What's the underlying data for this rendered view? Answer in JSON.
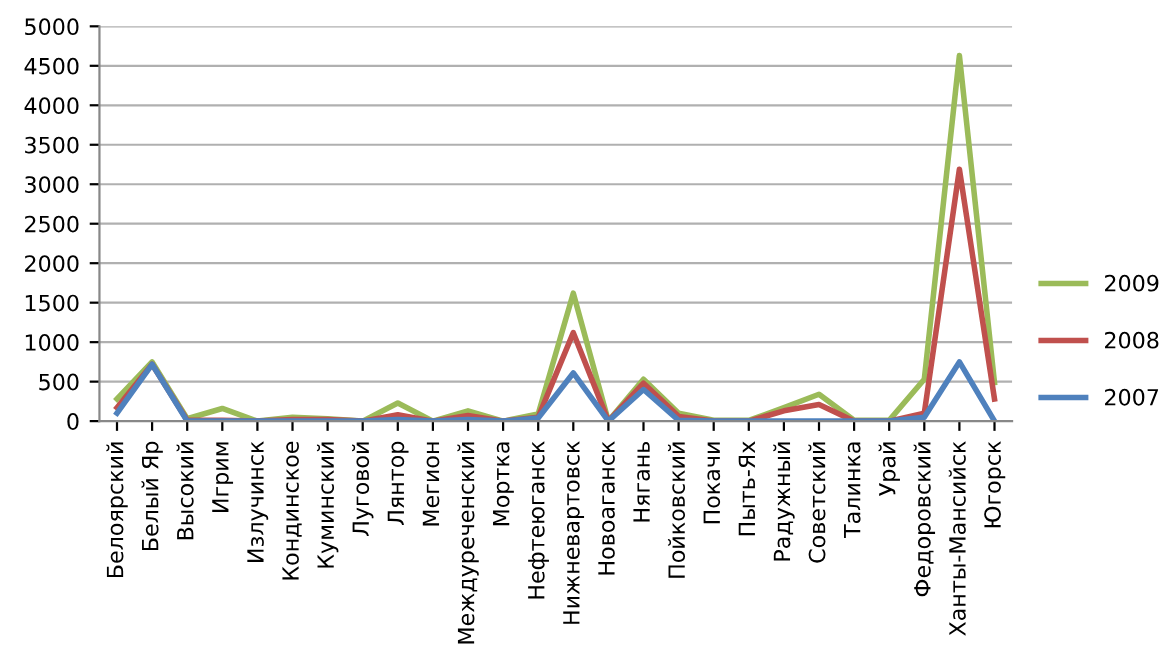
{
  "chart_data": {
    "type": "line",
    "categories": [
      "Белоярский",
      "Белый Яр",
      "Высокий",
      "Игрим",
      "Излучинск",
      "Кондинское",
      "Куминский",
      "Луговой",
      "Лянтор",
      "Мегион",
      "Междуреченский",
      "Мортка",
      "Нефтеюганск",
      "Нижневартовск",
      "Новоаганск",
      "Нягань",
      "Пойковский",
      "Покачи",
      "Пыть-Ях",
      "Радужный",
      "Советский",
      "Талинка",
      "Урай",
      "Федоровский",
      "Ханты-Мансийск",
      "Югорск"
    ],
    "series": [
      {
        "name": "2009",
        "color": "#9bbb59",
        "values": [
          280,
          750,
          30,
          160,
          0,
          50,
          30,
          0,
          230,
          0,
          130,
          0,
          90,
          1620,
          0,
          530,
          100,
          10,
          10,
          170,
          340,
          10,
          10,
          530,
          4630,
          490
        ]
      },
      {
        "name": "2008",
        "color": "#c0504d",
        "values": [
          170,
          720,
          10,
          10,
          0,
          20,
          20,
          0,
          80,
          0,
          70,
          0,
          50,
          1120,
          0,
          480,
          60,
          0,
          0,
          130,
          210,
          0,
          0,
          100,
          3190,
          280
        ]
      },
      {
        "name": "2007",
        "color": "#4f81bd",
        "values": [
          100,
          720,
          0,
          0,
          0,
          0,
          0,
          0,
          20,
          0,
          20,
          0,
          40,
          610,
          0,
          400,
          10,
          0,
          0,
          0,
          0,
          0,
          0,
          50,
          750,
          0
        ]
      }
    ],
    "ylim": [
      0,
      5000
    ],
    "yticks": [
      0,
      500,
      1000,
      1500,
      2000,
      2500,
      3000,
      3500,
      4000,
      4500,
      5000
    ],
    "grid": "y",
    "legend": "right",
    "marker": "none",
    "line_style": "solid"
  }
}
